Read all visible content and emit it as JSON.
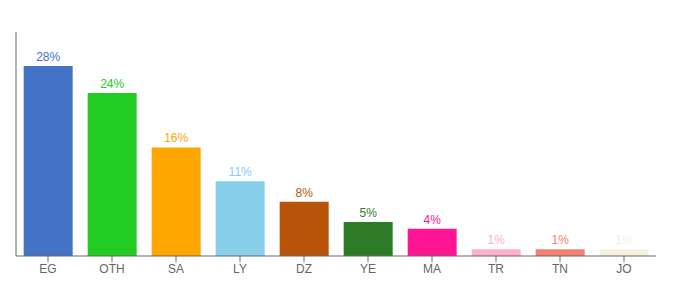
{
  "chart_data": {
    "type": "bar",
    "categories": [
      "EG",
      "OTH",
      "SA",
      "LY",
      "DZ",
      "YE",
      "MA",
      "TR",
      "TN",
      "JO"
    ],
    "values": [
      28,
      24,
      16,
      11,
      8,
      5,
      4,
      1,
      1,
      1
    ],
    "value_labels": [
      "28%",
      "24%",
      "16%",
      "11%",
      "8%",
      "5%",
      "4%",
      "1%",
      "1%",
      "1%"
    ],
    "data_labels": true,
    "colors": [
      "#4472C4",
      "#22CC22",
      "#FFA500",
      "#87CEEB",
      "#B8530A",
      "#2D7A27",
      "#FF1493",
      "#FFB0C8",
      "#F08070",
      "#F5F0DC"
    ],
    "ylim": [
      0,
      33
    ],
    "tick_labels": "x",
    "grid": false
  }
}
